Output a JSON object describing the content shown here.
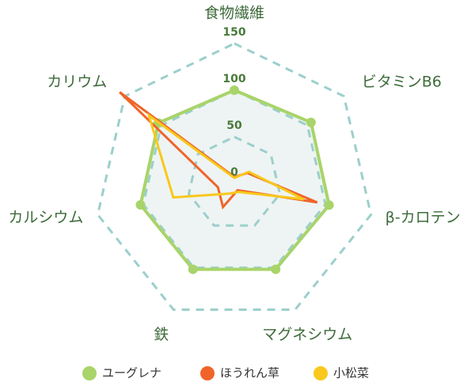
{
  "chart_data": {
    "type": "radar",
    "categories": [
      "食物繊維",
      "ビタミンB6",
      "β-カロテン",
      "マグネシウム",
      "鉄",
      "カルシウム",
      "カリウム"
    ],
    "ylim": [
      0,
      150
    ],
    "yticks": [
      0,
      50,
      100,
      150
    ],
    "grid": true,
    "series": [
      {
        "name": "ユーグレナ",
        "color": "#a8d46a",
        "values": [
          100,
          105,
          104,
          102,
          102,
          103,
          104
        ]
      },
      {
        "name": "ほうれん草",
        "color": "#f0642a",
        "values": [
          7,
          18,
          91,
          8,
          28,
          18,
          157
        ]
      },
      {
        "name": "小松菜",
        "color": "#f8c81c",
        "values": [
          6,
          20,
          76,
          10,
          12,
          67,
          117
        ]
      }
    ]
  }
}
